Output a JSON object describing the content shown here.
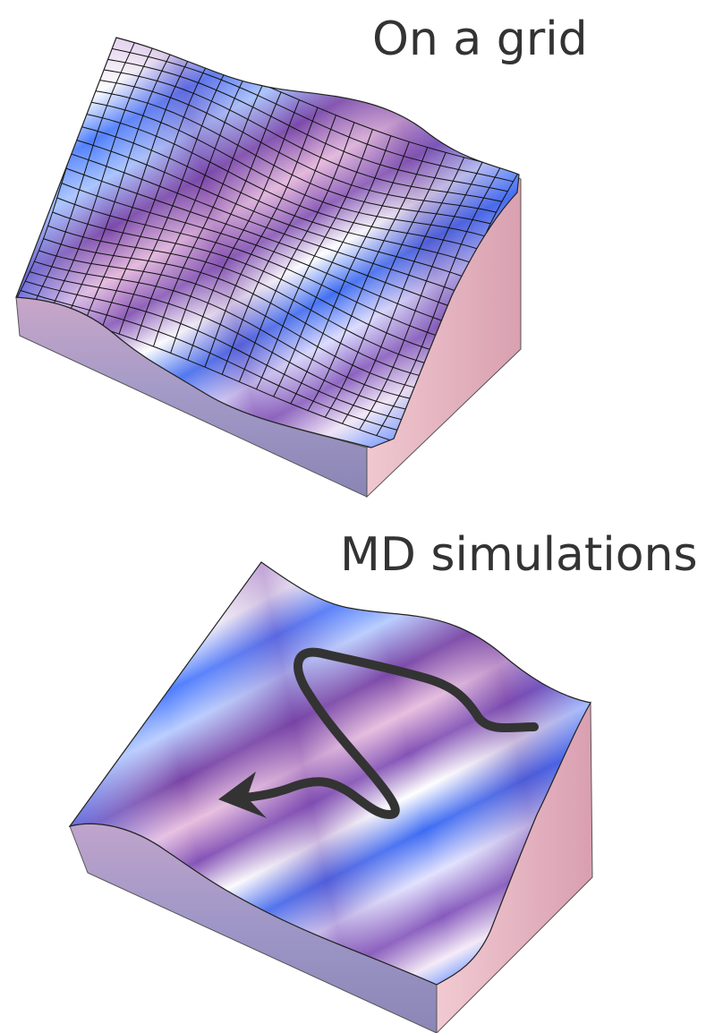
{
  "panels": {
    "grid": {
      "title": "On a grid"
    },
    "md": {
      "title": "MD simulations"
    }
  },
  "colors": {
    "text": "#333333",
    "surface_blue": "#4a7cff",
    "surface_purple": "#7b4ba8",
    "surface_pink": "#d6a8d8",
    "surface_white": "#ffffff",
    "side_left": "#9088b8",
    "side_right": "#e6b6c2",
    "mesh_lines": "#111111",
    "trajectory": "#333333"
  }
}
